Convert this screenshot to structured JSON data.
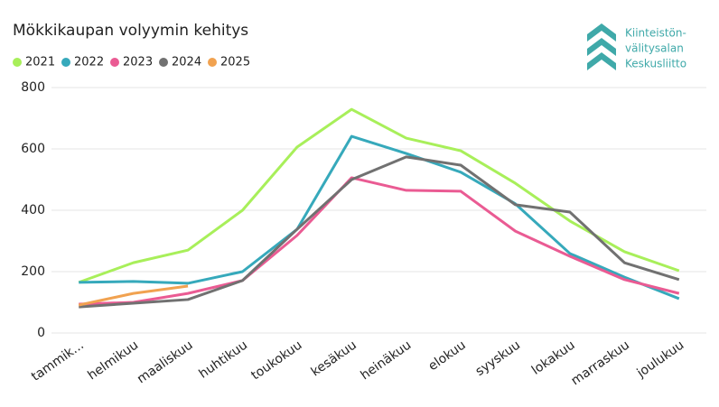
{
  "chart_data": {
    "type": "line",
    "title": "Mökkikaupan volyymin kehitys",
    "categories": [
      "tammik...",
      "helmikuu",
      "maaliskuu",
      "huhtikuu",
      "toukokuu",
      "kesäkuu",
      "heinäkuu",
      "elokuu",
      "syyskuu",
      "lokakuu",
      "marraskuu",
      "joulukuu"
    ],
    "series": [
      {
        "name": "2021",
        "color": "#a8ef5a",
        "values": [
          165,
          229,
          270,
          400,
          606,
          729,
          635,
          594,
          488,
          365,
          265,
          203
        ]
      },
      {
        "name": "2022",
        "color": "#36a9bb",
        "values": [
          165,
          168,
          162,
          200,
          338,
          641,
          585,
          524,
          421,
          259,
          182,
          112
        ]
      },
      {
        "name": "2023",
        "color": "#ea5b93",
        "values": [
          94,
          100,
          129,
          171,
          318,
          506,
          465,
          462,
          332,
          250,
          174,
          129
        ]
      },
      {
        "name": "2024",
        "color": "#717171",
        "values": [
          85,
          97,
          109,
          171,
          338,
          500,
          574,
          547,
          418,
          394,
          229,
          174
        ]
      },
      {
        "name": "2025",
        "color": "#f1a250",
        "values": [
          91,
          129,
          153,
          null,
          null,
          null,
          null,
          null,
          null,
          null,
          null,
          null
        ]
      }
    ],
    "ylim": [
      0,
      800
    ],
    "yticks": [
      0,
      200,
      400,
      600,
      800
    ],
    "grid": true,
    "legend": "top-left"
  },
  "logo": {
    "lines": [
      "Kiinteistön-",
      "välitysalan",
      "Keskusliitto"
    ]
  }
}
